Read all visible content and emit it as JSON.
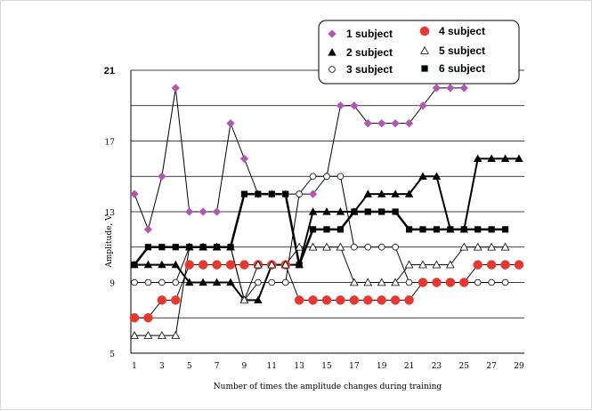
{
  "chart_data": {
    "type": "line",
    "xlabel": "Number of times the amplitude changes during training",
    "ylabel": "Amplitude, V",
    "xlim": [
      1,
      29
    ],
    "ylim": [
      5,
      21
    ],
    "x_ticks": [
      1,
      3,
      5,
      7,
      9,
      11,
      13,
      15,
      17,
      19,
      21,
      23,
      25,
      27,
      29
    ],
    "y_ticks": [
      5,
      9,
      13,
      17,
      21
    ],
    "y_gridlines": [
      7,
      9,
      11,
      13,
      15,
      17,
      19,
      21
    ],
    "grid": true,
    "legend_position": "top-right",
    "series": [
      {
        "name": "1 subject",
        "marker": "diamond",
        "color": "#b455b4",
        "line_width": 1,
        "x": [
          1,
          2,
          3,
          4,
          5,
          6,
          7,
          8,
          9,
          10,
          11,
          12,
          13,
          14,
          15,
          16,
          17,
          18,
          19,
          20,
          21,
          22,
          23,
          24,
          25
        ],
        "values": [
          14,
          12,
          15,
          20,
          13,
          13,
          13,
          18,
          16,
          14,
          14,
          14,
          14,
          14,
          15,
          19,
          19,
          18,
          18,
          18,
          18,
          19,
          20,
          20,
          20
        ]
      },
      {
        "name": "2 subject",
        "marker": "triangle-filled",
        "color": "#000000",
        "line_width": 2,
        "x": [
          1,
          2,
          3,
          4,
          5,
          6,
          7,
          8,
          9,
          10,
          11,
          12,
          13,
          14,
          15,
          16,
          17,
          18,
          19,
          20,
          21,
          22,
          23,
          24,
          25,
          26,
          27,
          28,
          29
        ],
        "values": [
          10,
          10,
          10,
          10,
          9,
          9,
          9,
          9,
          8,
          8,
          10,
          10,
          10,
          13,
          13,
          13,
          13,
          14,
          14,
          14,
          14,
          15,
          15,
          12,
          12,
          16,
          16,
          16,
          16
        ]
      },
      {
        "name": "3 subject",
        "marker": "circle-open",
        "color": "#000000",
        "line_width": 1,
        "x": [
          1,
          2,
          3,
          4,
          5,
          6,
          7,
          8,
          9,
          10,
          11,
          12,
          13,
          14,
          15,
          16,
          17,
          18,
          19,
          20,
          21,
          22,
          23,
          24,
          25,
          26,
          27,
          28
        ],
        "values": [
          9,
          9,
          9,
          9,
          11,
          11,
          11,
          11,
          8,
          9,
          9,
          9,
          14,
          15,
          15,
          15,
          11,
          11,
          11,
          11,
          9,
          9,
          9,
          9,
          9,
          9,
          9,
          9
        ]
      },
      {
        "name": "4 subject",
        "marker": "circle-filled",
        "color": "#e8382e",
        "line_width": 1,
        "x": [
          1,
          2,
          3,
          4,
          5,
          6,
          7,
          8,
          9,
          10,
          11,
          12,
          13,
          14,
          15,
          16,
          17,
          18,
          19,
          20,
          21,
          22,
          23,
          24,
          25,
          26,
          27,
          28,
          29
        ],
        "values": [
          7,
          7,
          8,
          8,
          10,
          10,
          10,
          10,
          10,
          10,
          10,
          10,
          8,
          8,
          8,
          8,
          8,
          8,
          8,
          8,
          8,
          9,
          9,
          9,
          9,
          10,
          10,
          10,
          10
        ]
      },
      {
        "name": "5 subject",
        "marker": "triangle-open",
        "color": "#000000",
        "line_width": 1,
        "x": [
          1,
          2,
          3,
          4,
          5,
          6,
          7,
          8,
          9,
          10,
          11,
          12,
          13,
          14,
          15,
          16,
          17,
          18,
          19,
          20,
          21,
          22,
          23,
          24,
          25,
          26,
          27,
          28
        ],
        "values": [
          6,
          6,
          6,
          6,
          11,
          11,
          11,
          11,
          8,
          10,
          10,
          10,
          11,
          11,
          11,
          11,
          9,
          9,
          9,
          9,
          10,
          10,
          10,
          10,
          11,
          11,
          11,
          11
        ]
      },
      {
        "name": "6 subject",
        "marker": "square-filled",
        "color": "#000000",
        "line_width": 2.5,
        "x": [
          1,
          2,
          3,
          4,
          5,
          6,
          7,
          8,
          9,
          10,
          11,
          12,
          13,
          14,
          15,
          16,
          17,
          18,
          19,
          20,
          21,
          22,
          23,
          24,
          25,
          26,
          27,
          28
        ],
        "values": [
          10,
          11,
          11,
          11,
          11,
          11,
          11,
          11,
          14,
          14,
          14,
          14,
          10,
          12,
          12,
          12,
          13,
          13,
          13,
          13,
          12,
          12,
          12,
          12,
          12,
          12,
          12,
          12
        ]
      }
    ]
  }
}
